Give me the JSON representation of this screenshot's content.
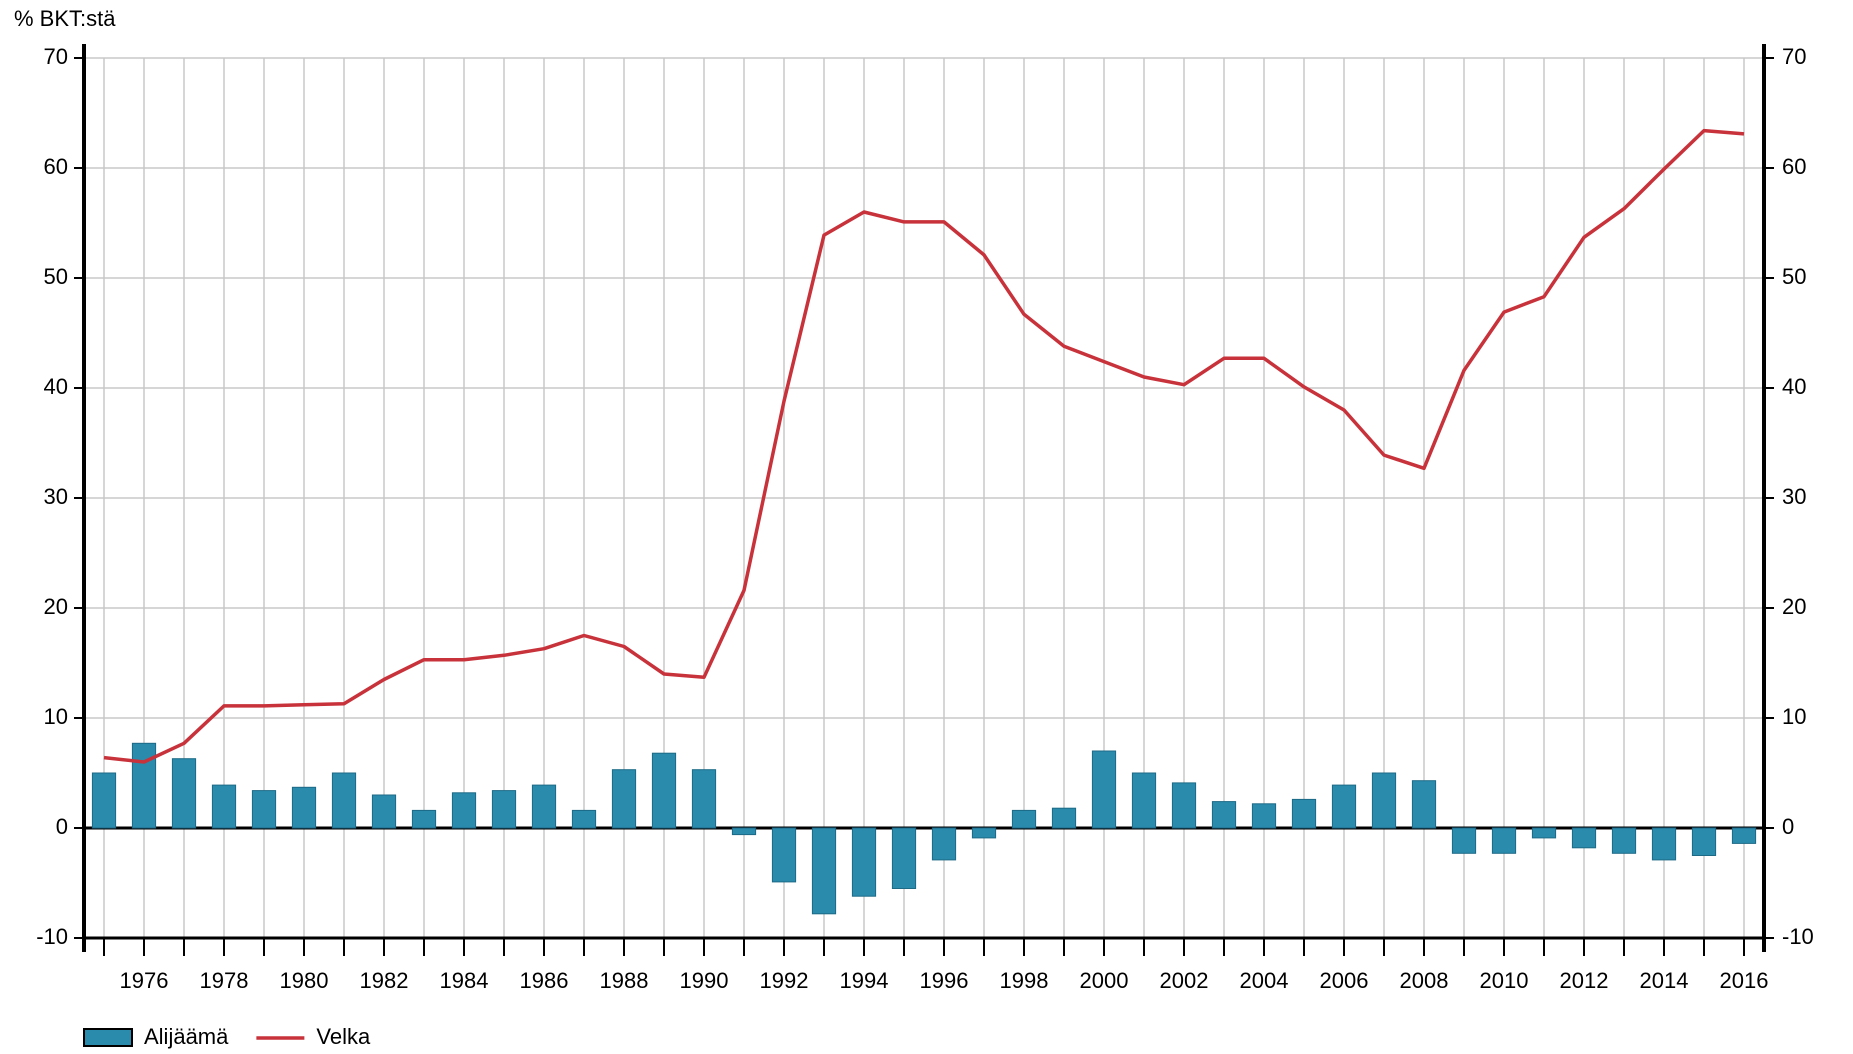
{
  "chart_data": {
    "type": "bar_line",
    "y_label": "% BKT:stä",
    "categories": [
      null,
      "1976",
      null,
      "1978",
      null,
      "1980",
      null,
      "1982",
      null,
      "1984",
      null,
      "1986",
      null,
      "1988",
      null,
      "1990",
      null,
      "1992",
      null,
      "1994",
      null,
      "1996",
      null,
      "1998",
      null,
      "2000",
      null,
      "2002",
      null,
      "2004",
      null,
      "2006",
      null,
      "2008",
      null,
      "2010",
      null,
      "2012",
      null,
      "2014",
      null,
      "2016"
    ],
    "series": [
      {
        "name": "Alijäämä",
        "type": "bar",
        "color": "#2a8bad",
        "values": [
          5.0,
          7.7,
          6.3,
          3.9,
          3.4,
          3.7,
          5.0,
          3.0,
          1.6,
          3.2,
          3.4,
          3.9,
          1.6,
          5.3,
          6.8,
          5.3,
          -0.6,
          -4.9,
          -7.8,
          -6.2,
          -5.5,
          -2.9,
          -0.9,
          1.6,
          1.8,
          7.0,
          5.0,
          4.1,
          2.4,
          2.2,
          2.6,
          3.9,
          5.0,
          4.3,
          -2.3,
          -2.3,
          -0.9,
          -1.8,
          -2.3,
          -2.9,
          -2.5,
          -1.4
        ]
      },
      {
        "name": "Velka",
        "type": "line",
        "color": "#c8323a",
        "values": [
          6.4,
          6.0,
          7.7,
          11.1,
          11.1,
          11.2,
          11.3,
          13.5,
          15.3,
          15.3,
          15.7,
          16.3,
          17.5,
          16.5,
          14.0,
          13.7,
          21.6,
          38.8,
          53.9,
          56.0,
          55.1,
          55.1,
          52.1,
          46.7,
          43.8,
          42.4,
          41.0,
          40.3,
          42.7,
          42.7,
          40.1,
          38.0,
          33.9,
          32.7,
          41.6,
          46.9,
          48.3,
          53.7,
          56.3,
          59.9,
          63.4,
          63.1
        ]
      }
    ],
    "ylim": [
      -10,
      70
    ],
    "yticks": [
      -10,
      0,
      10,
      20,
      30,
      40,
      50,
      60,
      70
    ],
    "y2lim": [
      -10,
      70
    ],
    "y2ticks": [
      -10,
      0,
      10,
      20,
      30,
      40,
      50,
      60,
      70
    ],
    "grid": true,
    "legend": "bottom-left"
  }
}
